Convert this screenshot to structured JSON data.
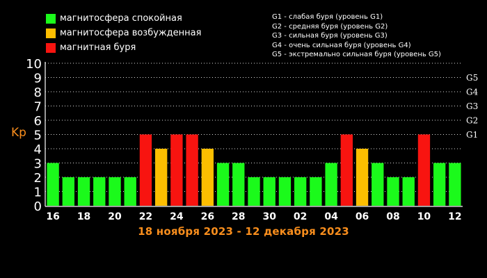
{
  "legend": [
    {
      "label": "магнитосфера спокойная",
      "color": "#1bfa1b"
    },
    {
      "label": "магнитосфера возбужденная",
      "color": "#fcbe00"
    },
    {
      "label": "магнитная буря",
      "color": "#f81410"
    }
  ],
  "g_legend": [
    "G1 - слабая буря (уровень G1)",
    "G2 - средняя буря (уровень G2)",
    "G3 - сильная буря (уровень G3)",
    "G4 - очень сильная буря (уровень G4)",
    "G5 - экстремально сильная буря (уровень G5)"
  ],
  "chart_data": {
    "type": "bar",
    "ylabel": "Kp",
    "xlabel": "18 ноября 2023 - 12 декабря 2023",
    "ylim": [
      0,
      10
    ],
    "y_ticks": [
      "0",
      "1",
      "2",
      "3",
      "4",
      "5",
      "6",
      "7",
      "8",
      "9",
      "10"
    ],
    "right_ticks": [
      {
        "label": "G1",
        "value": 5
      },
      {
        "label": "G2",
        "value": 6
      },
      {
        "label": "G3",
        "value": 7
      },
      {
        "label": "G4",
        "value": 8
      },
      {
        "label": "G5",
        "value": 9
      }
    ],
    "x_tick_labels": [
      "16",
      "18",
      "20",
      "22",
      "24",
      "26",
      "28",
      "30",
      "02",
      "04",
      "06",
      "08",
      "10",
      "12"
    ],
    "grid": true,
    "values": [
      3,
      2,
      2,
      2,
      2,
      2,
      5,
      4,
      5,
      5,
      4,
      3,
      3,
      2,
      2,
      2,
      2,
      2,
      3,
      5,
      4,
      3,
      2,
      2,
      5,
      3,
      3
    ],
    "level_colors": {
      "quiet": "#1bfa1b",
      "active": "#fcbe00",
      "storm": "#f81410"
    }
  }
}
